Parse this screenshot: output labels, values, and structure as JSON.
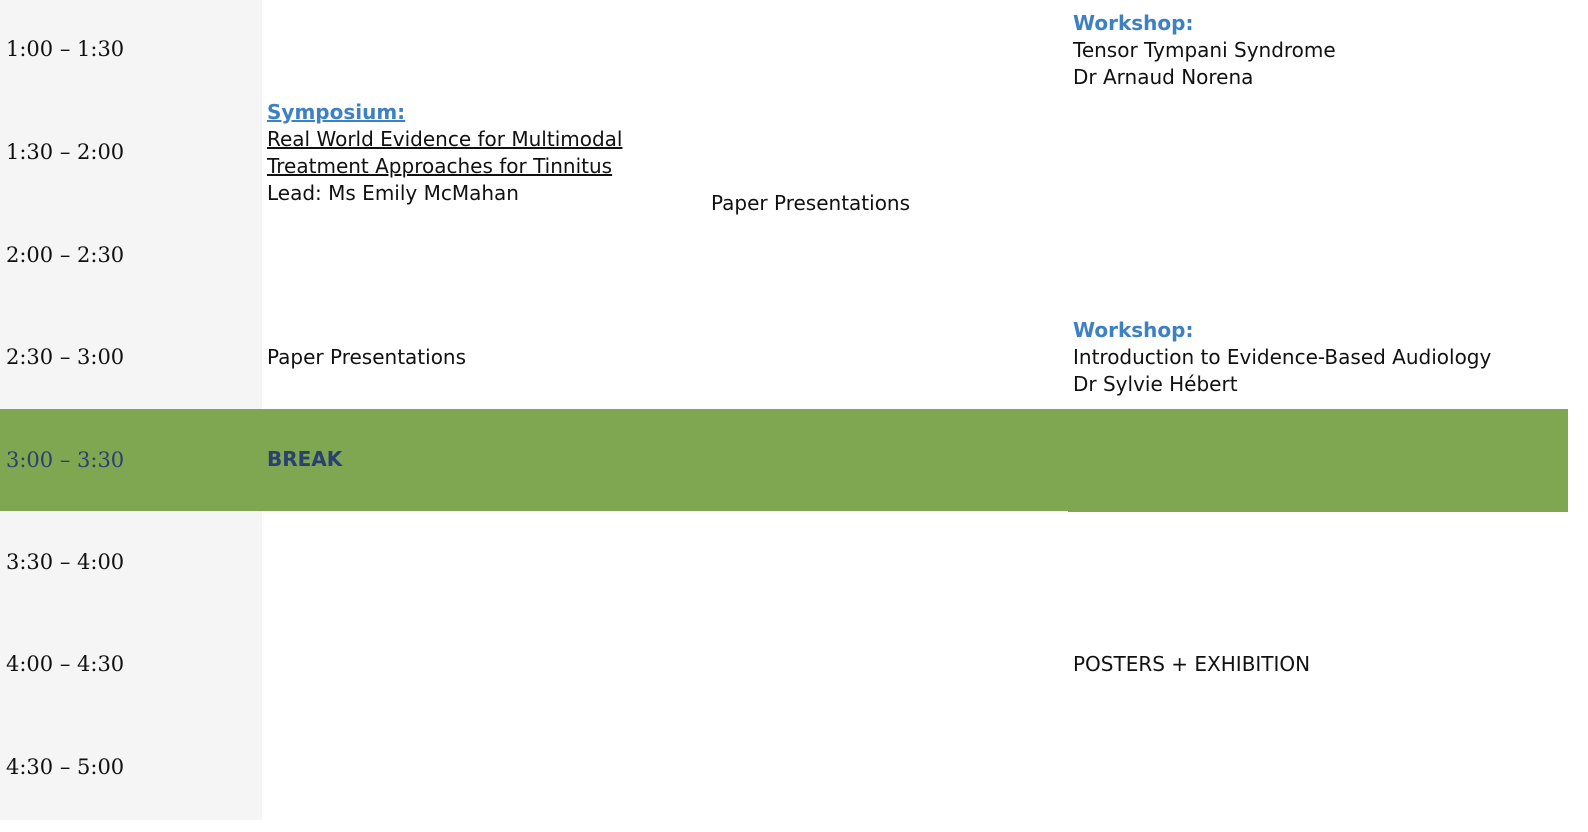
{
  "times": [
    "1:00 – 1:30",
    "1:30 – 2:00",
    "2:00 – 2:30",
    "2:30 – 3:00",
    "3:00 – 3:30",
    "3:30 – 4:00",
    "4:00 – 4:30",
    "4:30 – 5:00"
  ],
  "symposium": {
    "kicker": "Symposium:",
    "title_line1": "Real World Evidence for Multimodal",
    "title_line2": "Treatment Approaches for Tinnitus",
    "lead": "Lead: Ms Emily McMahan"
  },
  "col1_paper": "Paper Presentations",
  "col2_paper": "Paper Presentations",
  "workshop1": {
    "kicker": "Workshop:",
    "title": "Tensor Tympani Syndrome",
    "presenter": "Dr Arnaud Norena"
  },
  "workshop2": {
    "kicker": "Workshop:",
    "title": "Introduction to Evidence-Based Audiology",
    "presenter": "Dr Sylvie Hébert"
  },
  "break_label": "BREAK",
  "posters": "POSTERS + EXHIBITION",
  "colors": {
    "time_column_bg": "#f5f5f5",
    "break_bg": "#7fa650",
    "break_text": "#2a4170",
    "accent_blue": "#3d80c4"
  }
}
